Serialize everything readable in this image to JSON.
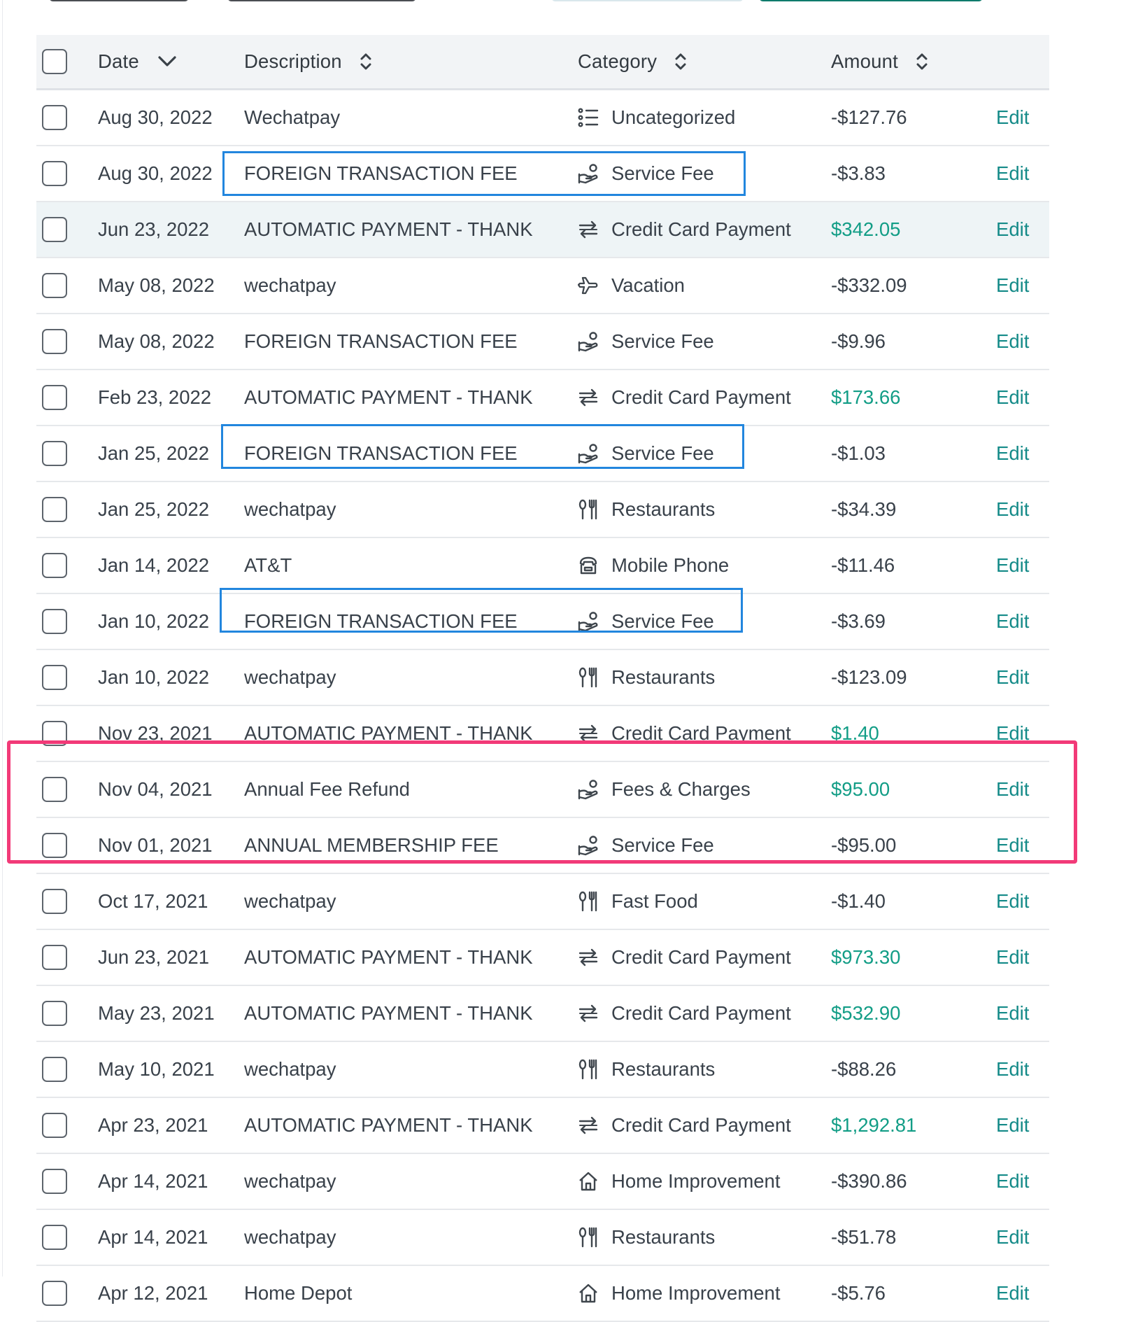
{
  "header": {
    "date": "Date",
    "description": "Description",
    "category": "Category",
    "amount": "Amount"
  },
  "edit_label": "Edit",
  "colors": {
    "positive": "#129d86",
    "edit": "#148a88",
    "highlight_blue": "#2286de",
    "highlight_pink": "#f23a78"
  },
  "rows": [
    {
      "date": "Aug 30, 2022",
      "description": "Wechatpay",
      "category": "Uncategorized",
      "icon": "list-icon",
      "amount": "-$127.76",
      "positive": false
    },
    {
      "date": "Aug 30, 2022",
      "description": "FOREIGN TRANSACTION FEE",
      "category": "Service Fee",
      "icon": "hand-coin-icon",
      "amount": "-$3.83",
      "positive": false
    },
    {
      "date": "Jun 23, 2022",
      "description": "AUTOMATIC PAYMENT - THANK",
      "category": "Credit Card Payment",
      "icon": "transfer-arrows-icon",
      "amount": "$342.05",
      "positive": true
    },
    {
      "date": "May 08, 2022",
      "description": "wechatpay",
      "category": "Vacation",
      "icon": "airplane-icon",
      "amount": "-$332.09",
      "positive": false
    },
    {
      "date": "May 08, 2022",
      "description": "FOREIGN TRANSACTION FEE",
      "category": "Service Fee",
      "icon": "hand-coin-icon",
      "amount": "-$9.96",
      "positive": false
    },
    {
      "date": "Feb 23, 2022",
      "description": "AUTOMATIC PAYMENT - THANK",
      "category": "Credit Card Payment",
      "icon": "transfer-arrows-icon",
      "amount": "$173.66",
      "positive": true
    },
    {
      "date": "Jan 25, 2022",
      "description": "FOREIGN TRANSACTION FEE",
      "category": "Service Fee",
      "icon": "hand-coin-icon",
      "amount": "-$1.03",
      "positive": false
    },
    {
      "date": "Jan 25, 2022",
      "description": "wechatpay",
      "category": "Restaurants",
      "icon": "fork-knife-icon",
      "amount": "-$34.39",
      "positive": false
    },
    {
      "date": "Jan 14, 2022",
      "description": "AT&T",
      "category": "Mobile Phone",
      "icon": "phone-icon",
      "amount": "-$11.46",
      "positive": false
    },
    {
      "date": "Jan 10, 2022",
      "description": "FOREIGN TRANSACTION FEE",
      "category": "Service Fee",
      "icon": "hand-coin-icon",
      "amount": "-$3.69",
      "positive": false
    },
    {
      "date": "Jan 10, 2022",
      "description": "wechatpay",
      "category": "Restaurants",
      "icon": "fork-knife-icon",
      "amount": "-$123.09",
      "positive": false
    },
    {
      "date": "Nov 23, 2021",
      "description": "AUTOMATIC PAYMENT - THANK",
      "category": "Credit Card Payment",
      "icon": "transfer-arrows-icon",
      "amount": "$1.40",
      "positive": true
    },
    {
      "date": "Nov 04, 2021",
      "description": "Annual Fee Refund",
      "category": "Fees & Charges",
      "icon": "hand-coin-icon",
      "amount": "$95.00",
      "positive": true
    },
    {
      "date": "Nov 01, 2021",
      "description": "ANNUAL MEMBERSHIP FEE",
      "category": "Service Fee",
      "icon": "hand-coin-icon",
      "amount": "-$95.00",
      "positive": false
    },
    {
      "date": "Oct 17, 2021",
      "description": "wechatpay",
      "category": "Fast Food",
      "icon": "fork-knife-icon",
      "amount": "-$1.40",
      "positive": false
    },
    {
      "date": "Jun 23, 2021",
      "description": "AUTOMATIC PAYMENT - THANK",
      "category": "Credit Card Payment",
      "icon": "transfer-arrows-icon",
      "amount": "$973.30",
      "positive": true
    },
    {
      "date": "May 23, 2021",
      "description": "AUTOMATIC PAYMENT - THANK",
      "category": "Credit Card Payment",
      "icon": "transfer-arrows-icon",
      "amount": "$532.90",
      "positive": true
    },
    {
      "date": "May 10, 2021",
      "description": "wechatpay",
      "category": "Restaurants",
      "icon": "fork-knife-icon",
      "amount": "-$88.26",
      "positive": false
    },
    {
      "date": "Apr 23, 2021",
      "description": "AUTOMATIC PAYMENT - THANK",
      "category": "Credit Card Payment",
      "icon": "transfer-arrows-icon",
      "amount": "$1,292.81",
      "positive": true
    },
    {
      "date": "Apr 14, 2021",
      "description": "wechatpay",
      "category": "Home Improvement",
      "icon": "house-icon",
      "amount": "-$390.86",
      "positive": false
    },
    {
      "date": "Apr 14, 2021",
      "description": "wechatpay",
      "category": "Restaurants",
      "icon": "fork-knife-icon",
      "amount": "-$51.78",
      "positive": false
    },
    {
      "date": "Apr 12, 2021",
      "description": "Home Depot",
      "category": "Home Improvement",
      "icon": "house-icon",
      "amount": "-$5.76",
      "positive": false
    }
  ]
}
